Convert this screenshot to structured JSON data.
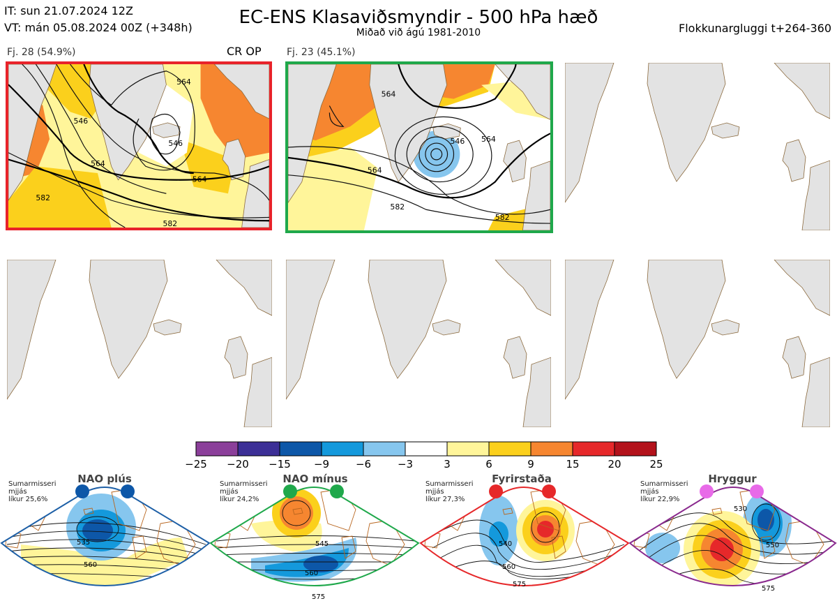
{
  "header": {
    "it": "IT: sun 21.07.2024 12Z",
    "vt": "VT: mán 05.08.2024 00Z  (+348h)",
    "title": "EC-ENS Klasaviðsmyndir - 500 hPa hæð",
    "subtitle": "Miðað við ágú 1981-2010",
    "window": "Flokkunargluggi t+264-360"
  },
  "panels": [
    {
      "label": "Fj. 28 (54.9%)",
      "tag": "CR OP",
      "border": "#e8232a",
      "contours": [
        "546",
        "546",
        "564",
        "564",
        "564",
        "582",
        "582"
      ]
    },
    {
      "label": "Fj. 23 (45.1%)",
      "tag": "",
      "border": "#1fa84b",
      "contours": [
        "546",
        "564",
        "564",
        "564",
        "582",
        "582"
      ]
    }
  ],
  "colorbar": {
    "colors": [
      "#8b3f9a",
      "#3c2f96",
      "#0d57a8",
      "#1499dc",
      "#86c6ee",
      "#ffffff",
      "#fff59a",
      "#fbd01c",
      "#f68630",
      "#e6282a",
      "#b3121b"
    ],
    "labels": [
      "−25",
      "−20",
      "−15",
      "−9",
      "−6",
      "−3",
      "3",
      "6",
      "9",
      "15",
      "20",
      "25"
    ]
  },
  "regimes": [
    {
      "title": "NAO plús",
      "note": "Sumarmisseri\nmjjás\nlíkur 25,6%",
      "frame": "#1d5fa6",
      "dot": "#0d57a8",
      "contours": [
        "535",
        "560"
      ]
    },
    {
      "title": "NAO mínus",
      "note": "Sumarmisseri\nmjjás\nlíkur 24,2%",
      "frame": "#1fa84b",
      "dot": "#1fa84b",
      "contours": [
        "545",
        "560",
        "575"
      ]
    },
    {
      "title": "Fyrirstaða",
      "note": "Sumarmisseri\nmjjás\nlíkur 27,3%",
      "frame": "#e6282a",
      "dot": "#e6282a",
      "contours": [
        "540",
        "560",
        "575"
      ]
    },
    {
      "title": "Hryggur",
      "note": "Sumarmisseri\nmjjás\nlíkur 22,9%",
      "frame": "#8a2a8e",
      "dot": "#e86ae8",
      "contours": [
        "530",
        "550",
        "575"
      ]
    }
  ]
}
